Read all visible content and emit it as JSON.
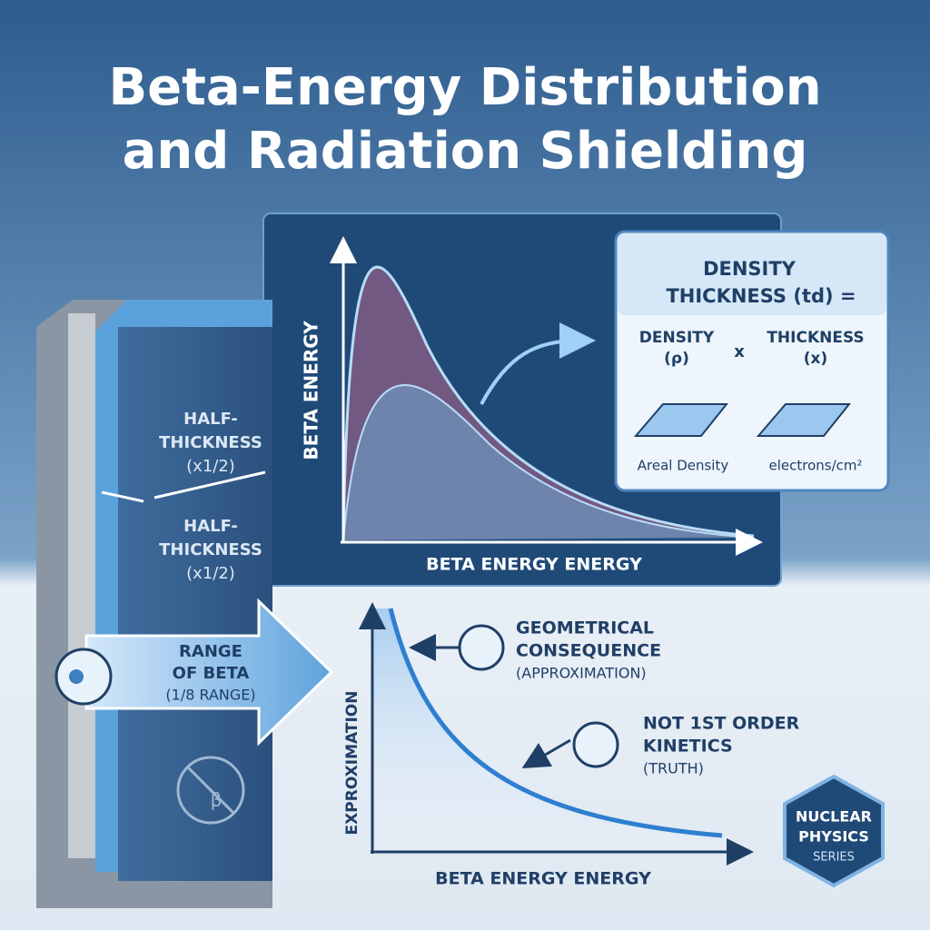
{
  "title": {
    "lines": [
      "Beta-Energy Distribution",
      "and Radiation Shielding"
    ]
  },
  "shield": {
    "half_thickness_upper": [
      "HALF-",
      "THICKNESS",
      "(x1/2)"
    ],
    "half_thickness_lower": [
      "HALF-",
      "THICKNESS",
      "(x1/2)"
    ],
    "range_arrow": [
      "RANGE",
      "OF BETA",
      "(1/8 RANGE)"
    ],
    "symbol": "β"
  },
  "spectrum_chart": {
    "y_label": "BETA ENERGY",
    "x_label": "BETA ENERGY ENERGY"
  },
  "formula_box": {
    "title": [
      "DENSITY",
      "THICKNESS (td) ="
    ],
    "density": [
      "DENSITY",
      "(ρ)"
    ],
    "operator": "x",
    "thickness": [
      "THICKNESS",
      "(x)"
    ],
    "density_caption": "Areal Density",
    "thickness_caption": "electrons/cm²"
  },
  "attenuation_chart": {
    "y_label": "EXPROXIMATION",
    "x_label": "BETA ENERGY ENERGY",
    "note_upper": [
      "GEOMETRICAL",
      "CONSEQUENCE",
      "(APPROXIMATION)"
    ],
    "note_lower": [
      "NOT 1ST ORDER",
      "KINETICS",
      "(TRUTH)"
    ]
  },
  "badge": [
    "NUCLEAR",
    "PHYSICS",
    "SERIES"
  ]
}
